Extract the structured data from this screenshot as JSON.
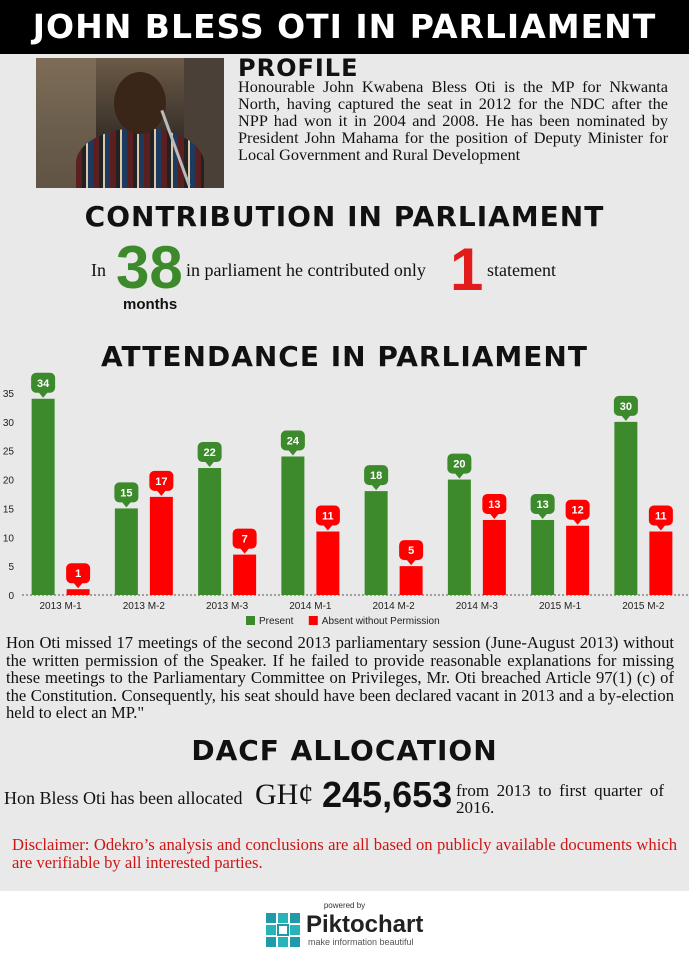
{
  "title": "JOHN BLESS OTI IN PARLIAMENT",
  "profile": {
    "heading": "PROFILE",
    "text": "Honourable John Kwabena Bless Oti is the MP for Nkwanta North, having captured the seat in 2012 for the NDC after the NPP had won it in 2004 and 2008. He has been nominated by President John Mahama for the position of Deputy Minister for Local Government and Rural Development"
  },
  "contribution": {
    "heading": "CONTRIBUTION IN PARLIAMENT",
    "prefix": "In",
    "months_value": "38",
    "months_label": "months",
    "middle": "in parliament he contributed only",
    "statements_value": "1",
    "suffix": "statement"
  },
  "attendance_heading": "ATTENDANCE IN PARLIAMENT",
  "chart_data": {
    "type": "bar",
    "categories": [
      "2013 M-1",
      "2013 M-2",
      "2013 M-3",
      "2014 M-1",
      "2014 M-2",
      "2014 M-3",
      "2015 M-1",
      "2015 M-2"
    ],
    "series": [
      {
        "name": "Present",
        "color": "#3c8a2c",
        "values": [
          34,
          15,
          22,
          24,
          18,
          20,
          13,
          30
        ]
      },
      {
        "name": "Absent without Permission",
        "color": "#ff0000",
        "values": [
          1,
          17,
          7,
          11,
          5,
          13,
          12,
          11
        ]
      }
    ],
    "ylim": [
      0,
      35
    ],
    "yticks": [
      0,
      5,
      10,
      15,
      20,
      25,
      30,
      35
    ],
    "legend_position": "bottom-center",
    "grid": false
  },
  "note": "Hon Oti missed 17 meetings of the second 2013 parliamentary session (June-August 2013) without the written permission of the Speaker. If he failed to provide reasonable explanations for missing these meetings to the Parliamentary Committee on Privileges, Mr. Oti breached Article 97(1) (c) of the Constitution. Consequently, his seat should have been declared vacant in 2013 and a by-election held to elect an MP.\"",
  "dacf": {
    "heading": "DACF ALLOCATION",
    "prefix": "Hon Bless Oti has been allocated",
    "currency": "GH¢",
    "amount": "245,653",
    "suffix": "from 2013 to first quarter of 2016."
  },
  "disclaimer": "Disclaimer: Odekro’s analysis and conclusions are all based on publicly available documents which are verifiable by all interested parties.",
  "footer": {
    "powered_by": "powered by",
    "brand": "Piktochart",
    "tagline": "make information beautiful"
  }
}
